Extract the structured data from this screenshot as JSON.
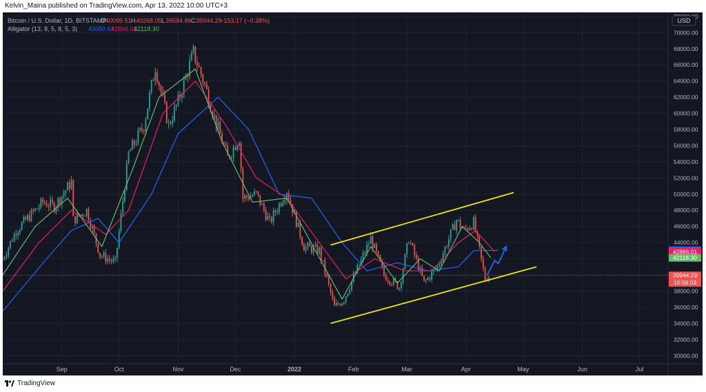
{
  "header": {
    "publisher_line": "Kelvin_Maina published on TradingView.com, Apr 13, 2022 10:00 UTC+3"
  },
  "footer": {
    "brand": "TradingView"
  },
  "legend": {
    "symbol_line": "Bitcoin / U.S. Dollar, 1D, BITSTAMP",
    "o_label": "O",
    "o_value": "40099.51",
    "h_label": "H",
    "h_value": "40268.05",
    "l_label": "L",
    "l_value": "39584.86",
    "c_label": "C",
    "c_value": "39944.29",
    "change": "−153.17 (−0.38%)",
    "indicator_line": "Alligator (13, 8, 5, 8, 5, 3)",
    "jaw_value": "43050.67",
    "teeth_value": "42866.01",
    "lips_value": "42118.30"
  },
  "price_tags": {
    "jaw": "43050.67",
    "teeth": "42866.01",
    "lips": "42118.30",
    "last": "39944.29",
    "countdown": "16:59:03"
  },
  "colors": {
    "background": "#131722",
    "grid": "#1f2330",
    "up": "#26a69a",
    "down": "#ef5350",
    "jaw": "#2962ff",
    "teeth": "#e91e63",
    "lips": "#66bb6a",
    "channel": "#f5e50a",
    "projection": "#2962ff",
    "text": "#b2b5be"
  },
  "chart_data": {
    "type": "candlestick",
    "symbol": "Bitcoin / U.S. Dollar",
    "interval": "1D",
    "exchange": "BITSTAMP",
    "currency_label": "USD",
    "ylim": [
      29000,
      72500
    ],
    "y_ticks": [
      30000,
      32000,
      34000,
      36000,
      38000,
      40000,
      42000,
      44000,
      46000,
      48000,
      50000,
      52000,
      54000,
      56000,
      58000,
      60000,
      62000,
      64000,
      66000,
      68000,
      70000,
      72000
    ],
    "y_tick_labels": [
      "30000.00",
      "32000.00",
      "34000.00",
      "36000.00",
      "38000.00",
      "40000.00",
      "42000.00",
      "44000.00",
      "46000.00",
      "48000.00",
      "50000.00",
      "52000.00",
      "54000.00",
      "56000.00",
      "58000.00",
      "60000.00",
      "62000.00",
      "64000.00",
      "66000.00",
      "68000.00",
      "70000.00",
      "72000.00"
    ],
    "x_range": [
      "2021-08-01",
      "2022-07-16"
    ],
    "x_ticks": [
      {
        "date": "2021-09-01",
        "label": "Sep"
      },
      {
        "date": "2021-10-01",
        "label": "Oct"
      },
      {
        "date": "2021-11-01",
        "label": "Nov"
      },
      {
        "date": "2021-12-01",
        "label": "Dec"
      },
      {
        "date": "2022-01-01",
        "label": "2022"
      },
      {
        "date": "2022-02-01",
        "label": "Feb"
      },
      {
        "date": "2022-03-01",
        "label": "Mar"
      },
      {
        "date": "2022-04-01",
        "label": "Apr"
      },
      {
        "date": "2022-05-01",
        "label": "May"
      },
      {
        "date": "2022-06-01",
        "label": "Jun"
      },
      {
        "date": "2022-07-01",
        "label": "Jul"
      }
    ],
    "price_path": [
      {
        "date": "2021-08-01",
        "close": 42000
      },
      {
        "date": "2021-08-08",
        "close": 45500
      },
      {
        "date": "2021-08-14",
        "close": 47000
      },
      {
        "date": "2021-08-22",
        "close": 49000
      },
      {
        "date": "2021-08-28",
        "close": 48500
      },
      {
        "date": "2021-09-06",
        "close": 51500
      },
      {
        "date": "2021-09-07",
        "close": 46800
      },
      {
        "date": "2021-09-14",
        "close": 48000
      },
      {
        "date": "2021-09-21",
        "close": 42500
      },
      {
        "date": "2021-09-29",
        "close": 41500
      },
      {
        "date": "2021-10-06",
        "close": 55000
      },
      {
        "date": "2021-10-14",
        "close": 58500
      },
      {
        "date": "2021-10-20",
        "close": 65800
      },
      {
        "date": "2021-10-27",
        "close": 58500
      },
      {
        "date": "2021-11-01",
        "close": 61500
      },
      {
        "date": "2021-11-09",
        "close": 67500
      },
      {
        "date": "2021-11-15",
        "close": 63500
      },
      {
        "date": "2021-11-20",
        "close": 59500
      },
      {
        "date": "2021-11-27",
        "close": 54500
      },
      {
        "date": "2021-12-03",
        "close": 57000
      },
      {
        "date": "2021-12-05",
        "close": 49500
      },
      {
        "date": "2021-12-12",
        "close": 50000
      },
      {
        "date": "2021-12-19",
        "close": 46500
      },
      {
        "date": "2021-12-28",
        "close": 50500
      },
      {
        "date": "2022-01-06",
        "close": 43500
      },
      {
        "date": "2022-01-14",
        "close": 43000
      },
      {
        "date": "2022-01-22",
        "close": 36000
      },
      {
        "date": "2022-01-27",
        "close": 37000
      },
      {
        "date": "2022-02-10",
        "close": 44500
      },
      {
        "date": "2022-02-17",
        "close": 40000
      },
      {
        "date": "2022-02-25",
        "close": 38500
      },
      {
        "date": "2022-03-02",
        "close": 44500
      },
      {
        "date": "2022-03-10",
        "close": 39000
      },
      {
        "date": "2022-03-17",
        "close": 41000
      },
      {
        "date": "2022-03-27",
        "close": 46800
      },
      {
        "date": "2022-03-31",
        "close": 45500
      },
      {
        "date": "2022-04-05",
        "close": 46500
      },
      {
        "date": "2022-04-11",
        "close": 39500
      },
      {
        "date": "2022-04-13",
        "close": 39944
      }
    ],
    "series": [
      {
        "name": "Alligator Jaw (13, 8)",
        "color": "#2962ff",
        "points": [
          {
            "date": "2021-08-01",
            "value": 35500
          },
          {
            "date": "2021-08-24",
            "value": 42000
          },
          {
            "date": "2021-09-06",
            "value": 45500
          },
          {
            "date": "2021-09-20",
            "value": 47000
          },
          {
            "date": "2021-10-01",
            "value": 44000
          },
          {
            "date": "2021-10-18",
            "value": 50000
          },
          {
            "date": "2021-11-01",
            "value": 57500
          },
          {
            "date": "2021-11-22",
            "value": 62000
          },
          {
            "date": "2021-12-08",
            "value": 58000
          },
          {
            "date": "2021-12-24",
            "value": 50000
          },
          {
            "date": "2022-01-10",
            "value": 49500
          },
          {
            "date": "2022-01-26",
            "value": 44000
          },
          {
            "date": "2022-02-08",
            "value": 40500
          },
          {
            "date": "2022-02-24",
            "value": 41500
          },
          {
            "date": "2022-03-12",
            "value": 40500
          },
          {
            "date": "2022-03-28",
            "value": 41000
          },
          {
            "date": "2022-04-05",
            "value": 43000
          },
          {
            "date": "2022-04-18",
            "value": 43050
          }
        ]
      },
      {
        "name": "Alligator Teeth (8, 5)",
        "color": "#e91e63",
        "points": [
          {
            "date": "2021-08-01",
            "value": 38000
          },
          {
            "date": "2021-08-20",
            "value": 44000
          },
          {
            "date": "2021-09-06",
            "value": 48000
          },
          {
            "date": "2021-09-24",
            "value": 45000
          },
          {
            "date": "2021-10-06",
            "value": 48000
          },
          {
            "date": "2021-10-24",
            "value": 60000
          },
          {
            "date": "2021-11-10",
            "value": 64000
          },
          {
            "date": "2021-11-26",
            "value": 58500
          },
          {
            "date": "2021-12-12",
            "value": 52000
          },
          {
            "date": "2021-12-28",
            "value": 49500
          },
          {
            "date": "2022-01-14",
            "value": 44000
          },
          {
            "date": "2022-01-28",
            "value": 39500
          },
          {
            "date": "2022-02-12",
            "value": 42000
          },
          {
            "date": "2022-02-28",
            "value": 40500
          },
          {
            "date": "2022-03-14",
            "value": 40500
          },
          {
            "date": "2022-03-28",
            "value": 44000
          },
          {
            "date": "2022-04-06",
            "value": 45500
          },
          {
            "date": "2022-04-16",
            "value": 42866
          }
        ]
      },
      {
        "name": "Alligator Lips (5, 3)",
        "color": "#66bb6a",
        "points": [
          {
            "date": "2021-08-01",
            "value": 40000
          },
          {
            "date": "2021-08-18",
            "value": 46000
          },
          {
            "date": "2021-09-04",
            "value": 49500
          },
          {
            "date": "2021-09-22",
            "value": 43500
          },
          {
            "date": "2021-10-08",
            "value": 53000
          },
          {
            "date": "2021-10-22",
            "value": 62000
          },
          {
            "date": "2021-11-10",
            "value": 65500
          },
          {
            "date": "2021-11-24",
            "value": 56500
          },
          {
            "date": "2021-12-10",
            "value": 49000
          },
          {
            "date": "2021-12-28",
            "value": 49500
          },
          {
            "date": "2022-01-12",
            "value": 43000
          },
          {
            "date": "2022-01-26",
            "value": 37000
          },
          {
            "date": "2022-02-10",
            "value": 43500
          },
          {
            "date": "2022-02-24",
            "value": 39000
          },
          {
            "date": "2022-03-08",
            "value": 42000
          },
          {
            "date": "2022-03-18",
            "value": 40500
          },
          {
            "date": "2022-03-30",
            "value": 46000
          },
          {
            "date": "2022-04-08",
            "value": 44000
          },
          {
            "date": "2022-04-14",
            "value": 42118
          }
        ]
      }
    ],
    "channel": {
      "upper": [
        {
          "date": "2022-01-20",
          "value": 43700
        },
        {
          "date": "2022-04-26",
          "value": 50200
        }
      ],
      "lower": [
        {
          "date": "2022-01-20",
          "value": 34000
        },
        {
          "date": "2022-05-08",
          "value": 41000
        }
      ]
    },
    "projection": [
      {
        "date": "2022-04-12",
        "value": 39900
      },
      {
        "date": "2022-04-16",
        "value": 41800
      },
      {
        "date": "2022-04-18",
        "value": 41400
      },
      {
        "date": "2022-04-22",
        "value": 43500
      }
    ]
  }
}
